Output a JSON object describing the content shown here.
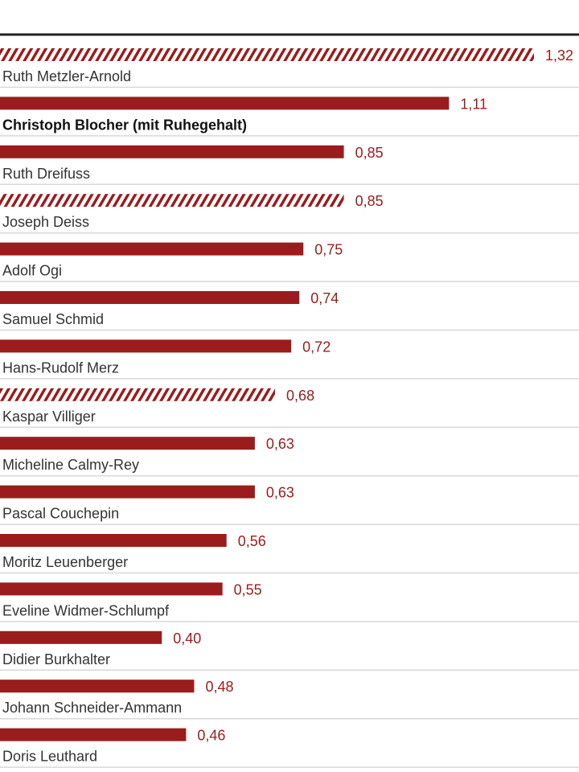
{
  "chart_data": {
    "type": "bar",
    "orientation": "horizontal",
    "bar_color": "#9b1c1c",
    "grid": false,
    "decimal_separator": ",",
    "categories": [
      "Ruth Metzler-Arnold",
      "Christoph Blocher (mit Ruhegehalt)",
      "Ruth Dreifuss",
      "Joseph Deiss",
      "Adolf Ogi",
      "Samuel Schmid",
      "Hans-Rudolf Merz",
      "Kaspar Villiger",
      "Micheline Calmy-Rey",
      "Pascal Couchepin",
      "Moritz Leuenberger",
      "Eveline Widmer-Schlumpf",
      "Didier Burkhalter",
      "Johann Schneider-Ammann",
      "Doris Leuthard"
    ],
    "values": [
      1.32,
      1.11,
      0.85,
      0.85,
      0.75,
      0.74,
      0.72,
      0.68,
      0.63,
      0.63,
      0.56,
      0.55,
      0.4,
      0.48,
      0.46
    ],
    "value_labels": [
      "1,32",
      "1,11",
      "0,85",
      "0,85",
      "0,75",
      "0,74",
      "0,72",
      "0,68",
      "0,63",
      "0,63",
      "0,56",
      "0,55",
      "0,40",
      "0,48",
      "0,46"
    ],
    "hatched": [
      true,
      false,
      false,
      true,
      false,
      false,
      false,
      true,
      false,
      false,
      false,
      false,
      false,
      false,
      false
    ],
    "bold": [
      false,
      true,
      false,
      false,
      false,
      false,
      false,
      false,
      false,
      false,
      false,
      false,
      false,
      false,
      false
    ],
    "xlim": [
      0,
      1.32
    ]
  }
}
